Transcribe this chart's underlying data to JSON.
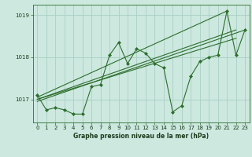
{
  "title": "Graphe pression niveau de la mer (hPa)",
  "bg_color": "#cce8df",
  "grid_color": "#aacfc5",
  "line_color": "#2d6e2d",
  "marker_color": "#2d6e2d",
  "xlim": [
    -0.5,
    23.5
  ],
  "ylim": [
    1016.45,
    1019.25
  ],
  "yticks": [
    1017,
    1018,
    1019
  ],
  "xticks": [
    0,
    1,
    2,
    3,
    4,
    5,
    6,
    7,
    8,
    9,
    10,
    11,
    12,
    13,
    14,
    15,
    16,
    17,
    18,
    19,
    20,
    21,
    22,
    23
  ],
  "series": [
    [
      0,
      1017.1
    ],
    [
      1,
      1016.75
    ],
    [
      2,
      1016.8
    ],
    [
      3,
      1016.75
    ],
    [
      4,
      1016.65
    ],
    [
      5,
      1016.65
    ],
    [
      6,
      1017.3
    ],
    [
      7,
      1017.35
    ],
    [
      8,
      1018.05
    ],
    [
      9,
      1018.35
    ],
    [
      10,
      1017.85
    ],
    [
      11,
      1018.2
    ],
    [
      12,
      1018.1
    ],
    [
      13,
      1017.85
    ],
    [
      14,
      1017.75
    ],
    [
      15,
      1016.7
    ],
    [
      16,
      1016.85
    ],
    [
      17,
      1017.55
    ],
    [
      18,
      1017.9
    ],
    [
      19,
      1018.0
    ],
    [
      20,
      1018.05
    ],
    [
      21,
      1019.1
    ],
    [
      22,
      1018.05
    ],
    [
      23,
      1018.65
    ]
  ],
  "trend_series": [
    [
      [
        0,
        1017.05
      ],
      [
        21,
        1019.1
      ]
    ],
    [
      [
        0,
        1017.0
      ],
      [
        22,
        1018.65
      ]
    ],
    [
      [
        0,
        1017.0
      ],
      [
        22,
        1018.45
      ]
    ],
    [
      [
        0,
        1016.95
      ],
      [
        23,
        1018.65
      ]
    ]
  ]
}
